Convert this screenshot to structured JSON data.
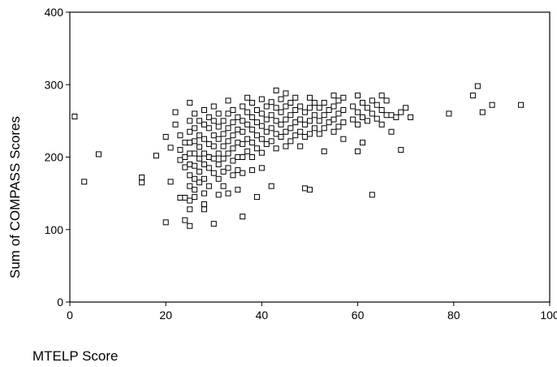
{
  "chart_data": {
    "type": "scatter",
    "xlabel": "MTELP Score",
    "ylabel": "Sum of COMPASS Scores",
    "xlim": [
      0,
      100
    ],
    "ylim": [
      0,
      400
    ],
    "x_ticks": [
      0,
      20,
      40,
      60,
      80,
      100
    ],
    "y_ticks": [
      0,
      100,
      200,
      300,
      400
    ],
    "marker": "hollow-square",
    "grid": false,
    "legend": "none",
    "series": [
      {
        "points": [
          [
            1,
            256
          ],
          [
            3,
            166
          ],
          [
            6,
            204
          ],
          [
            15,
            172
          ],
          [
            15,
            165
          ],
          [
            18,
            202
          ],
          [
            20,
            110
          ],
          [
            20,
            228
          ],
          [
            21,
            213
          ],
          [
            21,
            166
          ],
          [
            22,
            262
          ],
          [
            22,
            245
          ],
          [
            23,
            230
          ],
          [
            23,
            210
          ],
          [
            23,
            196
          ],
          [
            23,
            144
          ],
          [
            24,
            220
          ],
          [
            24,
            200
          ],
          [
            24,
            186
          ],
          [
            24,
            144
          ],
          [
            24,
            113
          ],
          [
            25,
            275
          ],
          [
            25,
            250
          ],
          [
            25,
            235
          ],
          [
            25,
            220
          ],
          [
            25,
            205
          ],
          [
            25,
            190
          ],
          [
            25,
            175
          ],
          [
            25,
            160
          ],
          [
            25,
            140
          ],
          [
            25,
            128
          ],
          [
            25,
            105
          ],
          [
            26,
            260
          ],
          [
            26,
            240
          ],
          [
            26,
            222
          ],
          [
            26,
            205
          ],
          [
            26,
            188
          ],
          [
            26,
            170
          ],
          [
            26,
            155
          ],
          [
            26,
            145
          ],
          [
            27,
            250
          ],
          [
            27,
            230
          ],
          [
            27,
            214
          ],
          [
            27,
            198
          ],
          [
            27,
            180
          ],
          [
            27,
            165
          ],
          [
            28,
            265
          ],
          [
            28,
            245
          ],
          [
            28,
            225
          ],
          [
            28,
            205
          ],
          [
            28,
            190
          ],
          [
            28,
            170
          ],
          [
            28,
            150
          ],
          [
            28,
            135
          ],
          [
            28,
            128
          ],
          [
            29,
            255
          ],
          [
            29,
            240
          ],
          [
            29,
            218
          ],
          [
            29,
            200
          ],
          [
            29,
            185
          ],
          [
            29,
            160
          ],
          [
            30,
            270
          ],
          [
            30,
            250
          ],
          [
            30,
            230
          ],
          [
            30,
            215
          ],
          [
            30,
            198
          ],
          [
            30,
            178
          ],
          [
            30,
            108
          ],
          [
            31,
            260
          ],
          [
            31,
            242
          ],
          [
            31,
            225
          ],
          [
            31,
            205
          ],
          [
            31,
            190
          ],
          [
            31,
            170
          ],
          [
            31,
            148
          ],
          [
            32,
            250
          ],
          [
            32,
            232
          ],
          [
            32,
            215
          ],
          [
            32,
            198
          ],
          [
            32,
            180
          ],
          [
            32,
            160
          ],
          [
            33,
            278
          ],
          [
            33,
            260
          ],
          [
            33,
            240
          ],
          [
            33,
            222
          ],
          [
            33,
            205
          ],
          [
            33,
            185
          ],
          [
            33,
            150
          ],
          [
            34,
            265
          ],
          [
            34,
            248
          ],
          [
            34,
            230
          ],
          [
            34,
            212
          ],
          [
            34,
            195
          ],
          [
            34,
            175
          ],
          [
            35,
            255
          ],
          [
            35,
            238
          ],
          [
            35,
            220
          ],
          [
            35,
            200
          ],
          [
            35,
            182
          ],
          [
            35,
            155
          ],
          [
            36,
            270
          ],
          [
            36,
            250
          ],
          [
            36,
            235
          ],
          [
            36,
            218
          ],
          [
            36,
            200
          ],
          [
            36,
            178
          ],
          [
            36,
            118
          ],
          [
            37,
            282
          ],
          [
            37,
            262
          ],
          [
            37,
            245
          ],
          [
            37,
            225
          ],
          [
            37,
            208
          ],
          [
            38,
            275
          ],
          [
            38,
            255
          ],
          [
            38,
            238
          ],
          [
            38,
            220
          ],
          [
            38,
            200
          ],
          [
            38,
            182
          ],
          [
            39,
            265
          ],
          [
            39,
            248
          ],
          [
            39,
            230
          ],
          [
            39,
            212
          ],
          [
            39,
            145
          ],
          [
            40,
            280
          ],
          [
            40,
            260
          ],
          [
            40,
            243
          ],
          [
            40,
            225
          ],
          [
            40,
            206
          ],
          [
            40,
            185
          ],
          [
            41,
            270
          ],
          [
            41,
            252
          ],
          [
            41,
            235
          ],
          [
            41,
            218
          ],
          [
            42,
            276
          ],
          [
            42,
            258
          ],
          [
            42,
            240
          ],
          [
            42,
            222
          ],
          [
            42,
            160
          ],
          [
            43,
            292
          ],
          [
            43,
            268
          ],
          [
            43,
            250
          ],
          [
            43,
            232
          ],
          [
            43,
            212
          ],
          [
            44,
            280
          ],
          [
            44,
            262
          ],
          [
            44,
            245
          ],
          [
            44,
            228
          ],
          [
            45,
            288
          ],
          [
            45,
            270
          ],
          [
            45,
            252
          ],
          [
            45,
            235
          ],
          [
            45,
            215
          ],
          [
            46,
            275
          ],
          [
            46,
            258
          ],
          [
            46,
            240
          ],
          [
            46,
            222
          ],
          [
            47,
            282
          ],
          [
            47,
            265
          ],
          [
            47,
            248
          ],
          [
            47,
            230
          ],
          [
            48,
            270
          ],
          [
            48,
            252
          ],
          [
            48,
            235
          ],
          [
            48,
            215
          ],
          [
            49,
            262
          ],
          [
            49,
            245
          ],
          [
            49,
            228
          ],
          [
            49,
            157
          ],
          [
            50,
            282
          ],
          [
            50,
            268
          ],
          [
            50,
            250
          ],
          [
            50,
            232
          ],
          [
            50,
            155
          ],
          [
            51,
            275
          ],
          [
            51,
            258
          ],
          [
            51,
            240
          ],
          [
            52,
            268
          ],
          [
            52,
            250
          ],
          [
            52,
            232
          ],
          [
            53,
            275
          ],
          [
            53,
            258
          ],
          [
            53,
            240
          ],
          [
            53,
            208
          ],
          [
            54,
            265
          ],
          [
            54,
            248
          ],
          [
            55,
            285
          ],
          [
            55,
            270
          ],
          [
            55,
            252
          ],
          [
            55,
            235
          ],
          [
            56,
            278
          ],
          [
            56,
            260
          ],
          [
            56,
            242
          ],
          [
            57,
            282
          ],
          [
            57,
            265
          ],
          [
            57,
            248
          ],
          [
            57,
            225
          ],
          [
            59,
            270
          ],
          [
            59,
            252
          ],
          [
            60,
            285
          ],
          [
            60,
            262
          ],
          [
            60,
            245
          ],
          [
            60,
            208
          ],
          [
            61,
            275
          ],
          [
            61,
            255
          ],
          [
            61,
            220
          ],
          [
            62,
            268
          ],
          [
            62,
            250
          ],
          [
            63,
            278
          ],
          [
            63,
            260
          ],
          [
            63,
            148
          ],
          [
            64,
            272
          ],
          [
            64,
            253
          ],
          [
            65,
            285
          ],
          [
            65,
            265
          ],
          [
            65,
            245
          ],
          [
            66,
            278
          ],
          [
            66,
            258
          ],
          [
            67,
            235
          ],
          [
            67,
            258
          ],
          [
            68,
            255
          ],
          [
            69,
            262
          ],
          [
            69,
            210
          ],
          [
            70,
            268
          ],
          [
            71,
            255
          ],
          [
            79,
            260
          ],
          [
            84,
            285
          ],
          [
            85,
            298
          ],
          [
            86,
            262
          ],
          [
            88,
            272
          ],
          [
            94,
            272
          ]
        ]
      }
    ]
  }
}
